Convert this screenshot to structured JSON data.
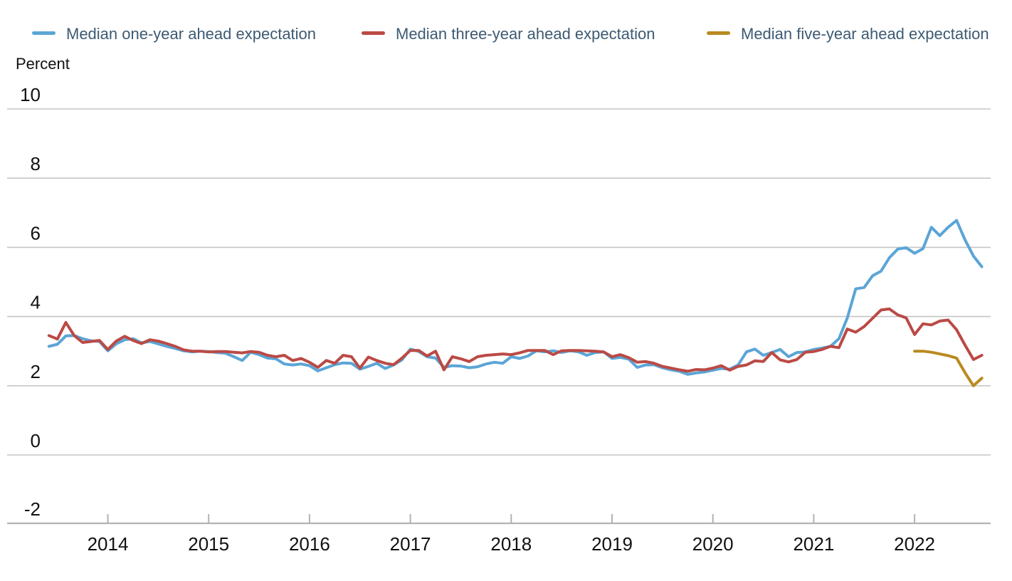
{
  "chart_data": {
    "type": "line",
    "title": "",
    "ylabel": "Percent",
    "ylim": [
      -2,
      10
    ],
    "yticks": [
      10,
      8,
      6,
      4,
      2,
      0,
      -2
    ],
    "xticks": [
      "2014",
      "2015",
      "2016",
      "2017",
      "2018",
      "2019",
      "2020",
      "2021",
      "2022"
    ],
    "x_unit": "month",
    "x_start": "2013-06",
    "x_end": "2022-09",
    "grid": "horizontal-gridlines",
    "legend_position": "top",
    "colors": {
      "gridline": "#c6c6c6",
      "axis_line": "#b2b2b2",
      "legend_text": "#3d5a73",
      "tick_text": "#111111"
    },
    "series": [
      {
        "name": "Median one-year ahead expectation",
        "color": "#5ba5d6",
        "start": "2013-06",
        "values": [
          3.14,
          3.2,
          3.44,
          3.45,
          3.36,
          3.3,
          3.28,
          3.01,
          3.21,
          3.33,
          3.36,
          3.24,
          3.28,
          3.21,
          3.14,
          3.08,
          3.01,
          2.98,
          3.0,
          2.99,
          2.96,
          2.94,
          2.84,
          2.73,
          2.97,
          2.9,
          2.8,
          2.78,
          2.63,
          2.6,
          2.63,
          2.58,
          2.43,
          2.52,
          2.61,
          2.66,
          2.65,
          2.48,
          2.56,
          2.65,
          2.5,
          2.6,
          2.75,
          3.06,
          2.99,
          2.84,
          2.8,
          2.53,
          2.58,
          2.57,
          2.52,
          2.55,
          2.63,
          2.68,
          2.65,
          2.84,
          2.79,
          2.86,
          3.01,
          2.98,
          3.01,
          2.96,
          3.01,
          2.98,
          2.88,
          2.96,
          2.98,
          2.79,
          2.82,
          2.77,
          2.53,
          2.6,
          2.61,
          2.52,
          2.46,
          2.42,
          2.33,
          2.37,
          2.4,
          2.45,
          2.5,
          2.48,
          2.6,
          2.98,
          3.06,
          2.88,
          2.96,
          3.05,
          2.84,
          2.96,
          2.98,
          3.05,
          3.09,
          3.14,
          3.36,
          3.96,
          4.8,
          4.84,
          5.18,
          5.31,
          5.7,
          5.95,
          5.99,
          5.83,
          5.96,
          6.58,
          6.34,
          6.58,
          6.78,
          6.22,
          5.75,
          5.44
        ]
      },
      {
        "name": "Median three-year ahead expectation",
        "color": "#bb4a45",
        "start": "2013-06",
        "values": [
          3.45,
          3.35,
          3.83,
          3.45,
          3.25,
          3.28,
          3.31,
          3.05,
          3.29,
          3.43,
          3.31,
          3.22,
          3.33,
          3.29,
          3.22,
          3.14,
          3.04,
          3.0,
          3.0,
          2.98,
          2.99,
          2.99,
          2.97,
          2.95,
          2.99,
          2.97,
          2.88,
          2.84,
          2.88,
          2.73,
          2.79,
          2.68,
          2.53,
          2.73,
          2.65,
          2.88,
          2.84,
          2.51,
          2.83,
          2.73,
          2.65,
          2.61,
          2.8,
          3.02,
          3.02,
          2.86,
          3.0,
          2.46,
          2.84,
          2.78,
          2.7,
          2.84,
          2.88,
          2.9,
          2.92,
          2.9,
          2.95,
          3.02,
          3.02,
          3.02,
          2.9,
          3.01,
          3.02,
          3.02,
          3.01,
          3.0,
          2.98,
          2.84,
          2.9,
          2.81,
          2.68,
          2.7,
          2.65,
          2.56,
          2.51,
          2.46,
          2.42,
          2.47,
          2.46,
          2.51,
          2.58,
          2.45,
          2.56,
          2.6,
          2.72,
          2.7,
          2.96,
          2.75,
          2.69,
          2.76,
          2.97,
          2.99,
          3.05,
          3.14,
          3.1,
          3.64,
          3.55,
          3.71,
          3.95,
          4.19,
          4.22,
          4.05,
          3.96,
          3.48,
          3.79,
          3.76,
          3.87,
          3.9,
          3.62,
          3.18,
          2.76,
          2.88
        ]
      },
      {
        "name": "Median five-year ahead expectation",
        "color": "#b98a20",
        "start": "2022-01",
        "values": [
          3.0,
          3.0,
          2.97,
          2.92,
          2.87,
          2.8,
          2.38,
          2.0,
          2.22
        ]
      }
    ]
  }
}
